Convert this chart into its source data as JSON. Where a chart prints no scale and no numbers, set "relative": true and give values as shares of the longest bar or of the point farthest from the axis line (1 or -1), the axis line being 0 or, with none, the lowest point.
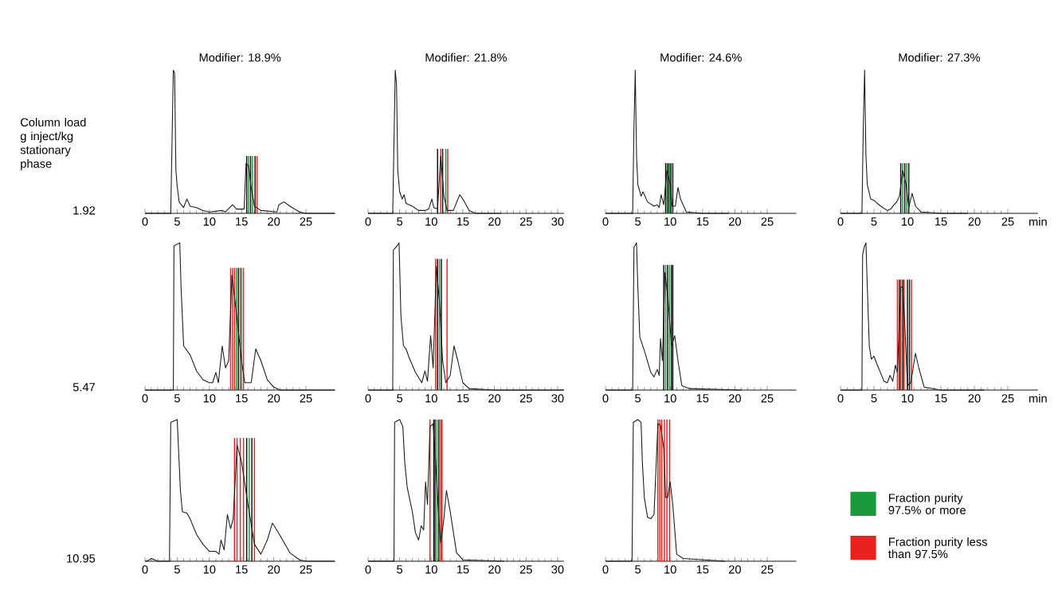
{
  "chart_data": [
    {
      "type": "line",
      "relative": true,
      "title": "Modifier: 18.9%",
      "color": "#1a1a1a",
      "xlim": [
        0,
        29.5
      ],
      "xticks": [
        0,
        5,
        10,
        15,
        20,
        25
      ],
      "annotations": [
        "Column load g inject/kg stationary phase",
        "1.92"
      ],
      "x": [
        0,
        4.0,
        4.2,
        4.4,
        4.6,
        4.8,
        5.0,
        5.3,
        6.0,
        6.5,
        7,
        8,
        9,
        10,
        12,
        12.5,
        13.6,
        14.2,
        15.4,
        15.7,
        16.1,
        16.5,
        17,
        18,
        20.5,
        20.8,
        21.6,
        22.5,
        24,
        25,
        29.5
      ],
      "values": [
        0,
        0,
        0.5,
        1.0,
        0.98,
        0.3,
        0.19,
        0.08,
        0.04,
        0.1,
        0.05,
        0.04,
        0.02,
        0.01,
        0.02,
        0.01,
        0.06,
        0.03,
        0.03,
        0.35,
        0.33,
        0.18,
        0.05,
        0.02,
        0.01,
        0.06,
        0.08,
        0.05,
        0.01,
        0,
        0
      ],
      "ref_lines": [
        {
          "axis": "x",
          "value": 15.8,
          "color": "#111111"
        },
        {
          "axis": "x",
          "value": 16.1,
          "color": "#1a9a3a"
        },
        {
          "axis": "x",
          "value": 16.4,
          "color": "#111111"
        },
        {
          "axis": "x",
          "value": 16.7,
          "color": "#1a9a3a"
        },
        {
          "axis": "x",
          "value": 17.1,
          "color": "#111111"
        },
        {
          "axis": "x",
          "value": 17.4,
          "color": "#e8231e"
        }
      ]
    },
    {
      "type": "line",
      "relative": true,
      "title": "Modifier: 21.8%",
      "color": "#1a1a1a",
      "xlim": [
        0,
        31
      ],
      "xticks": [
        0,
        5,
        10,
        15,
        20,
        25,
        30
      ],
      "x": [
        0,
        3.9,
        4.1,
        4.3,
        4.5,
        4.7,
        5,
        5.4,
        5.7,
        6,
        7,
        8,
        9,
        9.6,
        10.1,
        10.4,
        11,
        11.5,
        12,
        12.5,
        13.5,
        14.5,
        15,
        16,
        17,
        21
      ],
      "values": [
        0,
        0,
        0.5,
        1,
        0.9,
        0.3,
        0.15,
        0.1,
        0.13,
        0.07,
        0.05,
        0.02,
        0.02,
        0.03,
        0.1,
        0.04,
        0.03,
        0.4,
        0.12,
        0.02,
        0.02,
        0.13,
        0.1,
        0.02,
        0,
        0
      ],
      "ref_lines": [
        {
          "axis": "x",
          "value": 11.0,
          "color": "#111111"
        },
        {
          "axis": "x",
          "value": 11.5,
          "color": "#e8231e"
        },
        {
          "axis": "x",
          "value": 11.8,
          "color": "#111111"
        },
        {
          "axis": "x",
          "value": 12.3,
          "color": "#1a9a3a"
        },
        {
          "axis": "x",
          "value": 12.6,
          "color": "#e8231e"
        }
      ]
    },
    {
      "type": "line",
      "relative": true,
      "title": "Modifier: 24.6%",
      "color": "#1a1a1a",
      "xlim": [
        0,
        29.5
      ],
      "xticks": [
        0,
        5,
        10,
        15,
        20,
        25
      ],
      "x": [
        0,
        4.2,
        4.4,
        4.6,
        4.8,
        5,
        5.5,
        5.8,
        6.5,
        7.5,
        8,
        8.3,
        8.6,
        9,
        9.5,
        10,
        10.3,
        10.8,
        11.2,
        11.6,
        12.5,
        15,
        19
      ],
      "values": [
        0,
        0,
        0.6,
        1,
        0.4,
        0.2,
        0.12,
        0.15,
        0.08,
        0.05,
        0.06,
        0.04,
        0.13,
        0.06,
        0.3,
        0.2,
        0.05,
        0.05,
        0.18,
        0.1,
        0.01,
        0,
        0
      ],
      "ref_lines": [
        {
          "axis": "x",
          "value": 9.3,
          "color": "#111111"
        },
        {
          "axis": "x",
          "value": 9.5,
          "color": "#1a9a3a"
        },
        {
          "axis": "x",
          "value": 9.7,
          "color": "#111111"
        },
        {
          "axis": "x",
          "value": 9.9,
          "color": "#1a9a3a"
        },
        {
          "axis": "x",
          "value": 10.1,
          "color": "#111111"
        },
        {
          "axis": "x",
          "value": 10.4,
          "color": "#111111"
        }
      ]
    },
    {
      "type": "line",
      "relative": true,
      "title": "Modifier: 27.3%",
      "xlabel": "min",
      "color": "#1a1a1a",
      "xlim": [
        0,
        29.5
      ],
      "xticks": [
        0,
        5,
        10,
        15,
        20,
        25
      ],
      "x": [
        0,
        3.2,
        3.4,
        3.6,
        3.8,
        4.0,
        4.5,
        5,
        6,
        7,
        7.5,
        8,
        8.4,
        8.8,
        9.3,
        9.8,
        10.2,
        10.7,
        11.2,
        12,
        15,
        19
      ],
      "values": [
        0,
        0,
        0.6,
        1,
        0.4,
        0.2,
        0.1,
        0.09,
        0.05,
        0.02,
        0.03,
        0.06,
        0.08,
        0.12,
        0.3,
        0.2,
        0.04,
        0.14,
        0.05,
        0.01,
        0,
        0
      ],
      "ref_lines": [
        {
          "axis": "x",
          "value": 9.0,
          "color": "#111111"
        },
        {
          "axis": "x",
          "value": 9.3,
          "color": "#1a9a3a"
        },
        {
          "axis": "x",
          "value": 9.6,
          "color": "#111111"
        },
        {
          "axis": "x",
          "value": 9.9,
          "color": "#1a9a3a"
        },
        {
          "axis": "x",
          "value": 10.2,
          "color": "#111111"
        }
      ]
    },
    {
      "type": "line",
      "relative": true,
      "color": "#1a1a1a",
      "xlim": [
        0,
        29.5
      ],
      "xticks": [
        0,
        5,
        10,
        15,
        20,
        25
      ],
      "annotations": [
        "5.47"
      ],
      "x": [
        0,
        4.4,
        4.5,
        5.0,
        5.4,
        5.6,
        6.0,
        6.5,
        7,
        8,
        9,
        10,
        10.5,
        11,
        11.4,
        12,
        12.5,
        13,
        13.5,
        14,
        15,
        15.5,
        16.5,
        17.2,
        18,
        19,
        20,
        21,
        29.5
      ],
      "values": [
        0,
        0,
        0.98,
        0.99,
        1,
        0.7,
        0.3,
        0.27,
        0.24,
        0.13,
        0.07,
        0.05,
        0.05,
        0.12,
        0.05,
        0.3,
        0.15,
        0.2,
        0.78,
        0.6,
        0.2,
        0.05,
        0.05,
        0.28,
        0.2,
        0.07,
        0.02,
        0,
        0
      ],
      "ref_lines": [
        {
          "axis": "x",
          "value": 13.3,
          "color": "#e8231e"
        },
        {
          "axis": "x",
          "value": 13.6,
          "color": "#e8231e"
        },
        {
          "axis": "x",
          "value": 13.9,
          "color": "#e8231e"
        },
        {
          "axis": "x",
          "value": 14.2,
          "color": "#1a9a3a"
        },
        {
          "axis": "x",
          "value": 14.5,
          "color": "#111111"
        },
        {
          "axis": "x",
          "value": 14.8,
          "color": "#e8231e"
        },
        {
          "axis": "x",
          "value": 15.0,
          "color": "#1a9a3a"
        },
        {
          "axis": "x",
          "value": 15.3,
          "color": "#e8231e"
        }
      ]
    },
    {
      "type": "line",
      "relative": true,
      "color": "#1a1a1a",
      "xlim": [
        0,
        31
      ],
      "xticks": [
        0,
        5,
        10,
        15,
        20,
        25,
        30
      ],
      "x": [
        0,
        3.9,
        4.0,
        4.6,
        4.9,
        5.2,
        5.6,
        6,
        6.5,
        7.5,
        8.5,
        9,
        9.4,
        9.9,
        10.3,
        10.8,
        11.3,
        11.8,
        12.3,
        13,
        13.6,
        14.2,
        15,
        16,
        20,
        31
      ],
      "values": [
        0,
        0,
        0.95,
        0.98,
        1,
        0.5,
        0.3,
        0.28,
        0.22,
        0.12,
        0.05,
        0.13,
        0.06,
        0.37,
        0.15,
        0.84,
        0.6,
        0.2,
        0.05,
        0.1,
        0.3,
        0.2,
        0.05,
        0.01,
        0,
        0
      ],
      "ref_lines": [
        {
          "axis": "x",
          "value": 10.7,
          "color": "#e8231e"
        },
        {
          "axis": "x",
          "value": 11.0,
          "color": "#111111"
        },
        {
          "axis": "x",
          "value": 11.3,
          "color": "#1a9a3a"
        },
        {
          "axis": "x",
          "value": 11.6,
          "color": "#111111"
        },
        {
          "axis": "x",
          "value": 12.5,
          "color": "#e8231e"
        }
      ]
    },
    {
      "type": "line",
      "relative": true,
      "color": "#1a1a1a",
      "xlim": [
        0,
        29.5
      ],
      "xticks": [
        0,
        5,
        10,
        15,
        20,
        25
      ],
      "x": [
        0,
        4.2,
        4.4,
        4.8,
        5,
        5.3,
        6,
        7,
        7.5,
        8,
        8.3,
        8.5,
        8.8,
        9.2,
        9.7,
        10.2,
        10.7,
        11.2,
        11.8,
        13,
        21
      ],
      "values": [
        0,
        0,
        0.97,
        1,
        0.7,
        0.36,
        0.27,
        0.12,
        0.09,
        0.14,
        0.1,
        0.35,
        0.2,
        0.8,
        0.6,
        0.3,
        0.37,
        0.2,
        0.03,
        0.01,
        0
      ],
      "ref_lines": [
        {
          "axis": "x",
          "value": 9.0,
          "color": "#111111"
        },
        {
          "axis": "x",
          "value": 9.3,
          "color": "#1a9a3a"
        },
        {
          "axis": "x",
          "value": 9.6,
          "color": "#111111"
        },
        {
          "axis": "x",
          "value": 9.9,
          "color": "#1a9a3a"
        },
        {
          "axis": "x",
          "value": 10.2,
          "color": "#111111"
        },
        {
          "axis": "x",
          "value": 10.4,
          "color": "#111111"
        }
      ]
    },
    {
      "type": "line",
      "relative": true,
      "xlabel": "min",
      "color": "#1a1a1a",
      "xlim": [
        0,
        29.5
      ],
      "xticks": [
        0,
        5,
        10,
        15,
        20,
        25
      ],
      "x": [
        0,
        3.2,
        3.3,
        3.6,
        3.8,
        4.0,
        4.3,
        4.6,
        5,
        5.5,
        6.5,
        7,
        7.4,
        7.8,
        8.2,
        8.5,
        9.0,
        9.3,
        9.6,
        10,
        10.5,
        11.2,
        11.7,
        12.5,
        15,
        21.5
      ],
      "values": [
        0,
        0,
        0.92,
        0.98,
        1,
        0.7,
        0.3,
        0.21,
        0.23,
        0.17,
        0.06,
        0.05,
        0.1,
        0.06,
        0.17,
        0.12,
        0.7,
        0.7,
        0.45,
        0.03,
        0.05,
        0.25,
        0.15,
        0.02,
        0,
        0
      ],
      "ref_lines": [
        {
          "axis": "x",
          "value": 8.5,
          "color": "#e8231e"
        },
        {
          "axis": "x",
          "value": 8.8,
          "color": "#111111"
        },
        {
          "axis": "x",
          "value": 9.0,
          "color": "#e8231e"
        },
        {
          "axis": "x",
          "value": 9.3,
          "color": "#111111"
        },
        {
          "axis": "x",
          "value": 9.5,
          "color": "#e8231e"
        },
        {
          "axis": "x",
          "value": 10.0,
          "color": "#111111"
        },
        {
          "axis": "x",
          "value": 10.3,
          "color": "#111111"
        },
        {
          "axis": "x",
          "value": 10.6,
          "color": "#e8231e"
        }
      ]
    },
    {
      "type": "line",
      "relative": true,
      "color": "#1a1a1a",
      "xlim": [
        0,
        29.5
      ],
      "xticks": [
        0,
        5,
        10,
        15,
        20,
        25
      ],
      "annotations": [
        "10.95"
      ],
      "x": [
        0,
        0.5,
        1,
        1.5,
        2,
        3.8,
        4.0,
        5,
        5.2,
        5.5,
        5.8,
        6.5,
        7,
        8,
        9,
        10,
        11,
        11.5,
        11.8,
        12.3,
        12.8,
        13.3,
        13.7,
        14.3,
        15,
        16,
        17,
        18,
        19,
        19.8,
        21,
        22.5,
        24,
        25,
        29.5
      ],
      "values": [
        0,
        0.005,
        0.02,
        0.01,
        0,
        0,
        0.98,
        1,
        0.8,
        0.5,
        0.35,
        0.34,
        0.3,
        0.19,
        0.12,
        0.07,
        0.07,
        0.05,
        0.15,
        0.08,
        0.33,
        0.23,
        0.3,
        0.82,
        0.7,
        0.4,
        0.12,
        0.05,
        0.15,
        0.27,
        0.18,
        0.06,
        0.01,
        0,
        0
      ],
      "ref_lines": [
        {
          "axis": "x",
          "value": 13.9,
          "color": "#e8231e"
        },
        {
          "axis": "x",
          "value": 14.3,
          "color": "#e8231e"
        },
        {
          "axis": "x",
          "value": 14.8,
          "color": "#e8231e"
        },
        {
          "axis": "x",
          "value": 15.3,
          "color": "#e8231e"
        },
        {
          "axis": "x",
          "value": 15.8,
          "color": "#111111"
        },
        {
          "axis": "x",
          "value": 16.2,
          "color": "#1a9a3a"
        },
        {
          "axis": "x",
          "value": 16.6,
          "color": "#111111"
        },
        {
          "axis": "x",
          "value": 17.0,
          "color": "#e8231e"
        }
      ]
    },
    {
      "type": "line",
      "relative": true,
      "color": "#1a1a1a",
      "xlim": [
        0,
        31
      ],
      "xticks": [
        0,
        5,
        10,
        15,
        20,
        25,
        30
      ],
      "x": [
        0,
        4.1,
        4.2,
        5.0,
        5.5,
        5.8,
        6.2,
        7,
        7.5,
        8,
        8.4,
        8.8,
        9.1,
        9.4,
        9.8,
        10.3,
        10.7,
        11.2,
        11.5,
        12,
        12.4,
        13,
        14,
        15,
        21.5
      ],
      "values": [
        0,
        0,
        0.98,
        1,
        0.95,
        0.7,
        0.52,
        0.35,
        0.2,
        0.15,
        0.25,
        0.22,
        0.56,
        0.4,
        0.95,
        0.97,
        0.7,
        0.3,
        0.13,
        0.3,
        0.5,
        0.35,
        0.06,
        0.01,
        0
      ],
      "ref_lines": [
        {
          "axis": "x",
          "value": 9.8,
          "color": "#e8231e"
        },
        {
          "axis": "x",
          "value": 10.4,
          "color": "#111111"
        },
        {
          "axis": "x",
          "value": 10.6,
          "color": "#111111"
        },
        {
          "axis": "x",
          "value": 10.9,
          "color": "#1a9a3a"
        },
        {
          "axis": "x",
          "value": 11.2,
          "color": "#111111"
        },
        {
          "axis": "x",
          "value": 11.5,
          "color": "#e8231e"
        },
        {
          "axis": "x",
          "value": 11.7,
          "color": "#e8231e"
        }
      ]
    },
    {
      "type": "line",
      "relative": true,
      "color": "#1a1a1a",
      "xlim": [
        0,
        29.5
      ],
      "xticks": [
        0,
        5,
        10,
        15,
        20,
        25
      ],
      "x": [
        0,
        4.1,
        4.3,
        5,
        5.5,
        5.7,
        6,
        6.5,
        7,
        7.5,
        8.1,
        8.5,
        9,
        9.3,
        9.6,
        10,
        10.4,
        11,
        12,
        18.5
      ],
      "values": [
        0,
        0,
        0.98,
        1,
        0.98,
        0.7,
        0.45,
        0.31,
        0.3,
        0.33,
        0.97,
        0.96,
        0.8,
        0.45,
        0.45,
        0.56,
        0.4,
        0.05,
        0.02,
        0
      ],
      "ref_lines": [
        {
          "axis": "x",
          "value": 8.1,
          "color": "#e8231e"
        },
        {
          "axis": "x",
          "value": 8.4,
          "color": "#e8231e"
        },
        {
          "axis": "x",
          "value": 8.7,
          "color": "#e8231e"
        },
        {
          "axis": "x",
          "value": 9.1,
          "color": "#e8231e"
        },
        {
          "axis": "x",
          "value": 9.5,
          "color": "#e8231e"
        },
        {
          "axis": "x",
          "value": 9.9,
          "color": "#e8231e"
        }
      ]
    },
    {
      "type": "other",
      "series": [
        {
          "name": "Fraction purity 97.5% or more",
          "color": "#1a9a3a"
        },
        {
          "name": "Fraction purity less than 97.5%",
          "color": "#e8231e"
        }
      ]
    }
  ]
}
